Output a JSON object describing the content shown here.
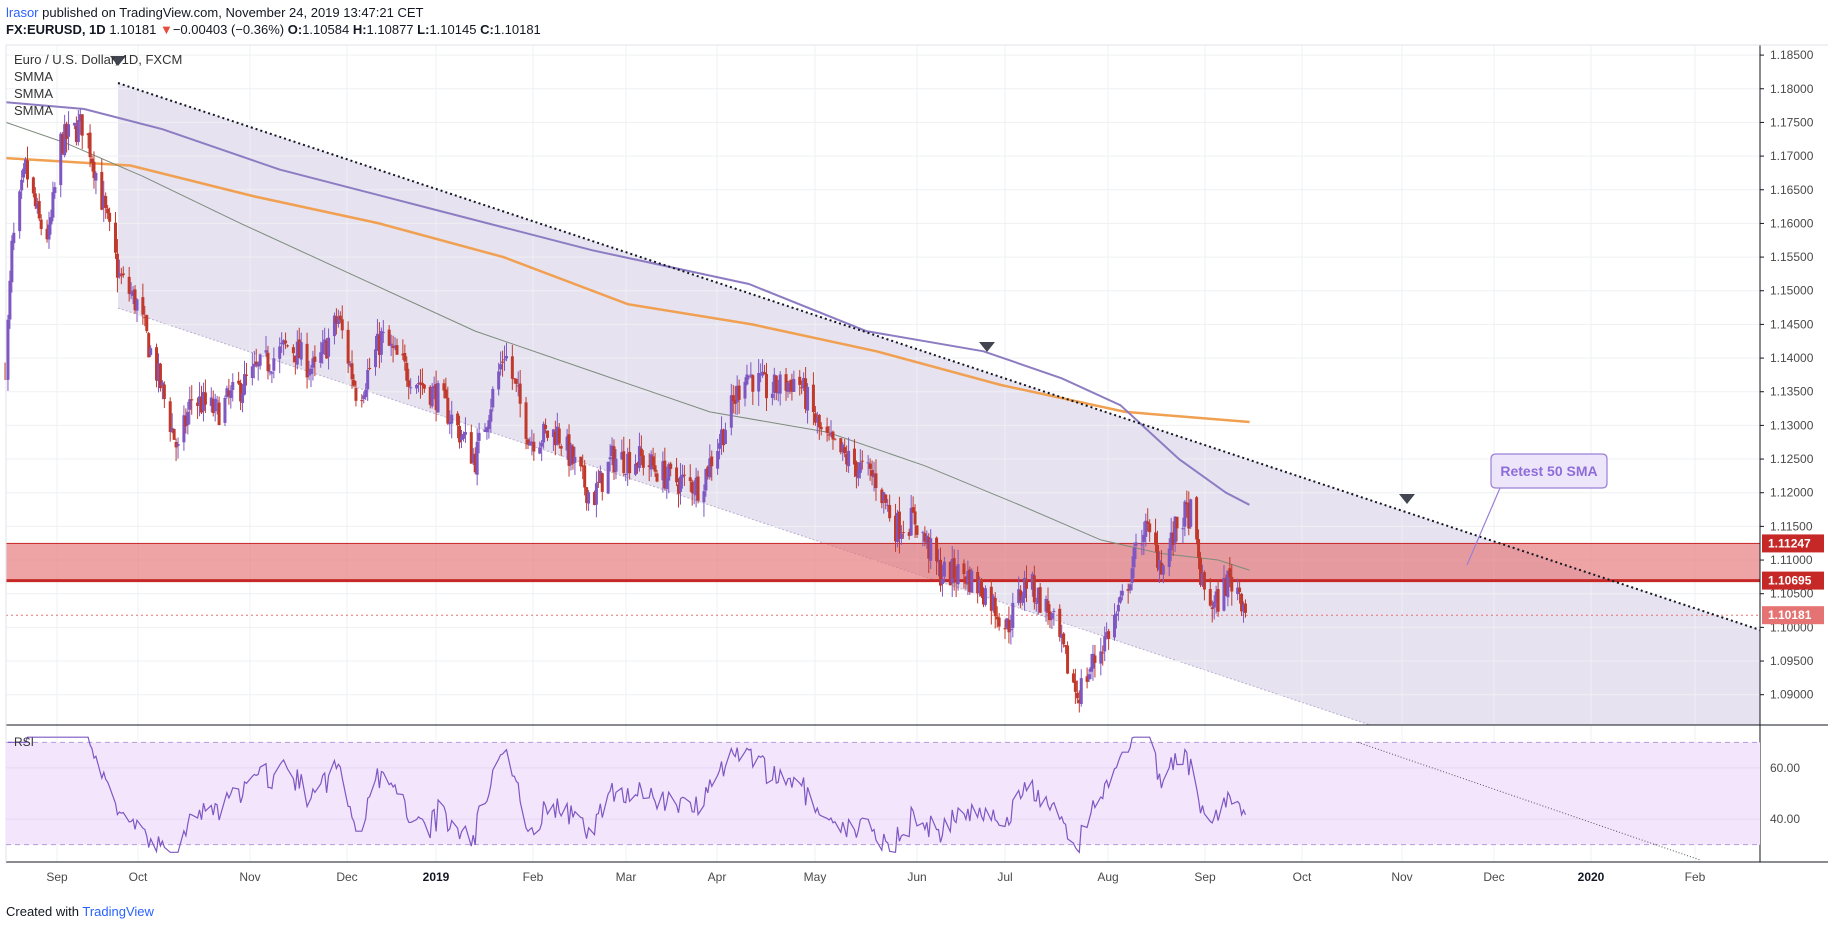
{
  "header": {
    "author": "lrasor",
    "published": " published on TradingView.com, November 24, 2019 13:47:21 CET",
    "symbol": "FX:EURUSD, 1D",
    "last": "1.10181",
    "arrow": "▼",
    "change": "−0.00403 (−0.36%)",
    "o_label": "O:",
    "o": "1.10584",
    "h_label": "H:",
    "h": "1.10877",
    "l_label": "L:",
    "l": "1.10145",
    "c_label": "C:",
    "c": "1.10181"
  },
  "footer": {
    "created": "Created with",
    "brand": "TradingView"
  },
  "colors": {
    "up": "#7e57c2",
    "down": "#c0392b",
    "zone": "#e57373",
    "sma50": "#8e7cc3",
    "sma100": "#7d8b7d",
    "sma200": "#f0a050",
    "channel": "#d6cfe6",
    "rsi_bg": "#f3e5fc",
    "rsi_line": "#7e57c2"
  },
  "chart_data": {
    "type": "candlestick",
    "title": "Euro / U.S. Dollar, 1D, FXCM",
    "legend": [
      "SMMA",
      "SMMA",
      "SMMA"
    ],
    "y_range": [
      1.0855,
      1.1865
    ],
    "y_ticks": [
      "1.18500",
      "1.18000",
      "1.17500",
      "1.17000",
      "1.16500",
      "1.16000",
      "1.15500",
      "1.15000",
      "1.14500",
      "1.14000",
      "1.13500",
      "1.13000",
      "1.12500",
      "1.12000",
      "1.11500",
      "1.11000",
      "1.10500",
      "1.10000",
      "1.09500",
      "1.09000"
    ],
    "x_ticks": [
      "Sep",
      "Oct",
      "Nov",
      "Dec",
      "2019",
      "Feb",
      "Mar",
      "Apr",
      "May",
      "Jun",
      "Jul",
      "Aug",
      "Sep",
      "Oct",
      "Nov",
      "Dec",
      "2020",
      "Feb"
    ],
    "price_labels": [
      {
        "text": "1.11247",
        "value": 1.11247,
        "color": "#c62828"
      },
      {
        "text": "1.10695",
        "value": 1.10695,
        "color": "#c62828"
      },
      {
        "text": "1.10181",
        "value": 1.10181,
        "color": "#e57373"
      }
    ],
    "resistance_zone": [
      1.10695,
      1.11247
    ],
    "annotation": "Retest 50 SMA",
    "rsi": {
      "label": "RSI",
      "ticks": [
        "60.00",
        "40.00"
      ],
      "range": [
        24,
        76
      ],
      "bands": [
        30,
        70
      ]
    }
  }
}
